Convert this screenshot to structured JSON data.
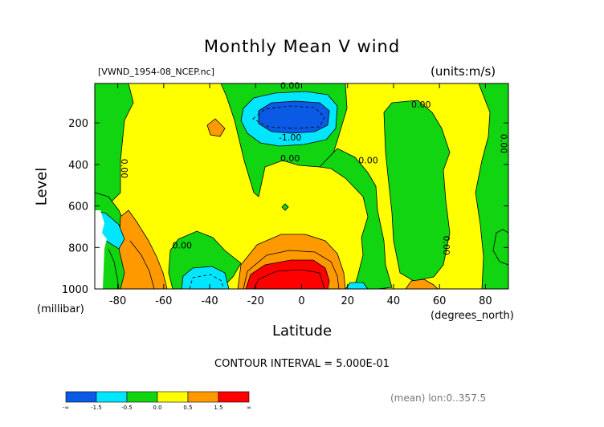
{
  "chart_data": {
    "type": "heatmap",
    "title": "Monthly Mean V wind",
    "file_label": "[VWND_1954-08_NCEP.nc]",
    "units_label": "(units:m/s)",
    "xlabel": "Latitude",
    "x_unit_label": "(degrees_north)",
    "ylabel": "Level",
    "y_unit_label": "(millibar)",
    "x_ticks": [
      "-80",
      "-60",
      "-40",
      "-20",
      "0",
      "20",
      "40",
      "60",
      "80"
    ],
    "x_tick_values": [
      -80,
      -60,
      -40,
      -20,
      0,
      20,
      40,
      60,
      80
    ],
    "y_ticks": [
      "200",
      "400",
      "600",
      "800",
      "1000"
    ],
    "y_tick_values": [
      200,
      400,
      600,
      800,
      1000
    ],
    "xlim": [
      -90,
      90
    ],
    "ylim": [
      1000,
      10
    ],
    "contour_labels": [
      {
        "text": "0.00",
        "lat": -5,
        "lev": 20
      },
      {
        "text": "0.00",
        "lat": 52,
        "lev": 110
      },
      {
        "text": "-1.00",
        "lat": -5,
        "lev": 270
      },
      {
        "text": "0.00",
        "lat": -5,
        "lev": 370
      },
      {
        "text": "0.00",
        "lat": 29,
        "lev": 380
      },
      {
        "text": "0.00",
        "lat": -77,
        "lev": 420
      },
      {
        "text": "0.00",
        "lat": 88,
        "lev": 300
      },
      {
        "text": "0.00",
        "lat": -52,
        "lev": 790
      },
      {
        "text": "0.00",
        "lat": 63,
        "lev": 790
      }
    ],
    "contour_interval_label": "CONTOUR INTERVAL = 5.000E-01",
    "footer_label": "(mean) lon:0..357.5",
    "colorbar": {
      "colors": [
        "#0a5ae6",
        "#00e6ff",
        "#11d511",
        "#ffff00",
        "#ff9900",
        "#ff0000"
      ],
      "labels": [
        "-∞",
        "-1.5",
        "-0.5",
        "0.0",
        "0.5",
        "1.5",
        "∞"
      ]
    }
  }
}
